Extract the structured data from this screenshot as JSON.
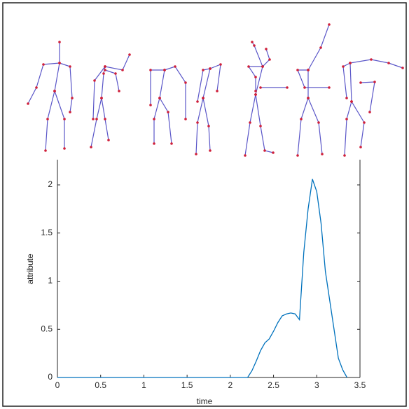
{
  "chart_data": {
    "type": "line",
    "xlabel": "time",
    "ylabel": "attribute",
    "x": [
      0,
      2.2,
      2.25,
      2.3,
      2.35,
      2.4,
      2.45,
      2.5,
      2.55,
      2.6,
      2.65,
      2.7,
      2.75,
      2.8,
      2.85,
      2.9,
      2.95,
      3.0,
      3.05,
      3.1,
      3.15,
      3.2,
      3.25,
      3.3,
      3.35
    ],
    "series": [
      {
        "color": "#0072bd",
        "values": [
          0,
          0,
          0.07,
          0.17,
          0.28,
          0.36,
          0.4,
          0.48,
          0.57,
          0.64,
          0.66,
          0.67,
          0.66,
          0.6,
          1.3,
          1.75,
          2.06,
          1.93,
          1.6,
          1.1,
          0.8,
          0.5,
          0.2,
          0.08,
          0
        ]
      }
    ],
    "xlim": [
      0,
      3.5
    ],
    "xticks": [
      0,
      0.5,
      1,
      1.5,
      2,
      2.5,
      3,
      3.5
    ],
    "ylim": [
      0,
      2.2
    ],
    "yticks": [
      0,
      0.5,
      1,
      1.5,
      2
    ]
  }
}
